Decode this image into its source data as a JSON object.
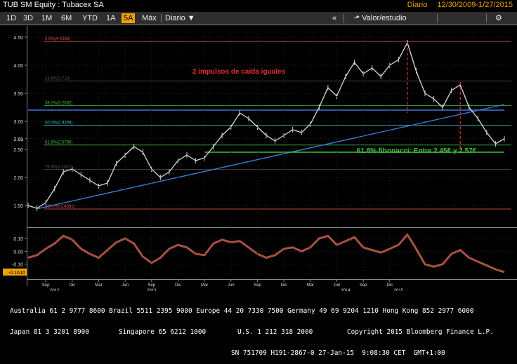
{
  "window": {
    "title": "TUB SM Equity : Tubacex SA",
    "frequency": "Diario",
    "date_range": "12/30/2009-1/27/2015"
  },
  "toolbar": {
    "buttons": [
      "1D",
      "3D",
      "1M",
      "6M",
      "YTD",
      "1A",
      "5A",
      "Máx"
    ],
    "selected": "5A",
    "frequency_dropdown": "Diario",
    "collapse": "«",
    "chart_type_label": "Valor/estudio",
    "settings_icon": "gear-icon"
  },
  "chart_data": {
    "type": "line",
    "price": {
      "y_ticks": [
        "4.50",
        "4.00",
        "3.50",
        "3.00",
        "2.69",
        "2.50",
        "2.00",
        "1.50"
      ],
      "fib_levels": [
        {
          "label": "0.0%(4.4236)",
          "value": 4.4236,
          "color": "#e05050"
        },
        {
          "label": "23.6%(3.719)",
          "value": 3.719,
          "color": "#555555"
        },
        {
          "label": "38.2%(3.2832)",
          "value": 3.2832,
          "color": "#40c040"
        },
        {
          "label": "50.0%(2.9309)",
          "value": 2.9309,
          "color": "#40c0c0"
        },
        {
          "label": "61.8%(2.5786)",
          "value": 2.5786,
          "color": "#40c040"
        },
        {
          "label": "76.4%(2.1427)",
          "value": 2.1427,
          "color": "#555555"
        },
        {
          "label": "100.0%(1.4381)",
          "value": 1.4381,
          "color": "#e05050"
        }
      ],
      "last_price": "2.69",
      "annotations": [
        "2 impulsos de caída iguales",
        "61.8% fibonacci: Entre 2.45€ y 2.57€"
      ],
      "series": [
        {
          "date": "2010-07",
          "value": 1.5
        },
        {
          "date": "2010-08",
          "value": 1.45
        },
        {
          "date": "2010-09",
          "value": 1.55
        },
        {
          "date": "2010-10",
          "value": 1.8
        },
        {
          "date": "2010-11",
          "value": 2.1
        },
        {
          "date": "2010-12",
          "value": 2.15
        },
        {
          "date": "2011-01",
          "value": 2.05
        },
        {
          "date": "2011-02",
          "value": 1.95
        },
        {
          "date": "2011-03",
          "value": 1.85
        },
        {
          "date": "2011-04",
          "value": 1.9
        },
        {
          "date": "2011-05",
          "value": 2.25
        },
        {
          "date": "2011-06",
          "value": 2.4
        },
        {
          "date": "2011-07",
          "value": 2.55
        },
        {
          "date": "2011-08",
          "value": 2.45
        },
        {
          "date": "2011-09",
          "value": 2.15
        },
        {
          "date": "2011-10",
          "value": 2.0
        },
        {
          "date": "2011-11",
          "value": 2.1
        },
        {
          "date": "2011-12",
          "value": 2.3
        },
        {
          "date": "2012-01",
          "value": 2.4
        },
        {
          "date": "2012-02",
          "value": 2.3
        },
        {
          "date": "2012-03",
          "value": 2.35
        },
        {
          "date": "2012-04",
          "value": 2.55
        },
        {
          "date": "2012-05",
          "value": 2.75
        },
        {
          "date": "2012-06",
          "value": 2.9
        },
        {
          "date": "2012-07",
          "value": 3.15
        },
        {
          "date": "2012-08",
          "value": 3.05
        },
        {
          "date": "2012-09",
          "value": 2.9
        },
        {
          "date": "2012-10",
          "value": 2.75
        },
        {
          "date": "2012-11",
          "value": 2.65
        },
        {
          "date": "2012-12",
          "value": 2.75
        },
        {
          "date": "2013-01",
          "value": 2.85
        },
        {
          "date": "2013-02",
          "value": 2.8
        },
        {
          "date": "2013-03",
          "value": 2.95
        },
        {
          "date": "2013-04",
          "value": 3.25
        },
        {
          "date": "2013-05",
          "value": 3.6
        },
        {
          "date": "2013-06",
          "value": 3.45
        },
        {
          "date": "2013-07",
          "value": 3.8
        },
        {
          "date": "2013-08",
          "value": 4.05
        },
        {
          "date": "2013-09",
          "value": 3.85
        },
        {
          "date": "2013-10",
          "value": 3.95
        },
        {
          "date": "2013-11",
          "value": 3.8
        },
        {
          "date": "2013-12",
          "value": 4.0
        },
        {
          "date": "2014-01",
          "value": 4.1
        },
        {
          "date": "2014-02",
          "value": 4.4
        },
        {
          "date": "2014-03",
          "value": 3.9
        },
        {
          "date": "2014-04",
          "value": 3.5
        },
        {
          "date": "2014-05",
          "value": 3.4
        },
        {
          "date": "2014-06",
          "value": 3.25
        },
        {
          "date": "2014-07",
          "value": 3.55
        },
        {
          "date": "2014-08",
          "value": 3.65
        },
        {
          "date": "2014-09",
          "value": 3.25
        },
        {
          "date": "2014-10",
          "value": 3.05
        },
        {
          "date": "2014-11",
          "value": 2.8
        },
        {
          "date": "2014-12",
          "value": 2.6
        },
        {
          "date": "2015-01",
          "value": 2.69
        }
      ]
    },
    "oscillator": {
      "y_ticks": [
        "0.10",
        "0.00",
        "-0.10"
      ],
      "last_value": "-0.1610",
      "series": [
        {
          "date": "2010-07",
          "value": -0.05
        },
        {
          "date": "2010-08",
          "value": -0.03
        },
        {
          "date": "2010-09",
          "value": 0.02
        },
        {
          "date": "2010-10",
          "value": 0.06
        },
        {
          "date": "2010-11",
          "value": 0.12
        },
        {
          "date": "2010-12",
          "value": 0.09
        },
        {
          "date": "2011-01",
          "value": 0.02
        },
        {
          "date": "2011-02",
          "value": -0.02
        },
        {
          "date": "2011-03",
          "value": -0.05
        },
        {
          "date": "2011-04",
          "value": 0.01
        },
        {
          "date": "2011-05",
          "value": 0.07
        },
        {
          "date": "2011-06",
          "value": 0.1
        },
        {
          "date": "2011-07",
          "value": 0.06
        },
        {
          "date": "2011-08",
          "value": -0.04
        },
        {
          "date": "2011-09",
          "value": -0.09
        },
        {
          "date": "2011-10",
          "value": -0.05
        },
        {
          "date": "2011-11",
          "value": 0.02
        },
        {
          "date": "2011-12",
          "value": 0.05
        },
        {
          "date": "2012-01",
          "value": 0.03
        },
        {
          "date": "2012-02",
          "value": -0.02
        },
        {
          "date": "2012-03",
          "value": -0.03
        },
        {
          "date": "2012-04",
          "value": 0.06
        },
        {
          "date": "2012-05",
          "value": 0.09
        },
        {
          "date": "2012-06",
          "value": 0.07
        },
        {
          "date": "2012-07",
          "value": 0.08
        },
        {
          "date": "2012-08",
          "value": 0.03
        },
        {
          "date": "2012-09",
          "value": -0.02
        },
        {
          "date": "2012-10",
          "value": -0.05
        },
        {
          "date": "2012-11",
          "value": -0.03
        },
        {
          "date": "2012-12",
          "value": 0.02
        },
        {
          "date": "2013-01",
          "value": 0.03
        },
        {
          "date": "2013-02",
          "value": 0.0
        },
        {
          "date": "2013-03",
          "value": 0.03
        },
        {
          "date": "2013-04",
          "value": 0.1
        },
        {
          "date": "2013-05",
          "value": 0.12
        },
        {
          "date": "2013-06",
          "value": 0.05
        },
        {
          "date": "2013-07",
          "value": 0.08
        },
        {
          "date": "2013-08",
          "value": 0.11
        },
        {
          "date": "2013-09",
          "value": 0.03
        },
        {
          "date": "2013-10",
          "value": 0.01
        },
        {
          "date": "2013-11",
          "value": -0.01
        },
        {
          "date": "2013-12",
          "value": 0.02
        },
        {
          "date": "2014-01",
          "value": 0.05
        },
        {
          "date": "2014-02",
          "value": 0.13
        },
        {
          "date": "2014-03",
          "value": 0.02
        },
        {
          "date": "2014-04",
          "value": -0.1
        },
        {
          "date": "2014-05",
          "value": -0.12
        },
        {
          "date": "2014-06",
          "value": -0.1
        },
        {
          "date": "2014-07",
          "value": -0.02
        },
        {
          "date": "2014-08",
          "value": 0.01
        },
        {
          "date": "2014-09",
          "value": -0.05
        },
        {
          "date": "2014-10",
          "value": -0.08
        },
        {
          "date": "2014-11",
          "value": -0.11
        },
        {
          "date": "2014-12",
          "value": -0.14
        },
        {
          "date": "2015-01",
          "value": -0.161
        }
      ]
    },
    "x_axis": {
      "month_ticks": [
        {
          "label": "Sep",
          "date": "2010-09"
        },
        {
          "label": "Dic",
          "date": "2010-12"
        },
        {
          "label": "Mar",
          "date": "2011-03"
        },
        {
          "label": "Jun",
          "date": "2011-06"
        },
        {
          "label": "Sep",
          "date": "2011-09"
        },
        {
          "label": "Dic",
          "date": "2011-12"
        },
        {
          "label": "Mar",
          "date": "2012-03"
        },
        {
          "label": "Jun",
          "date": "2012-06"
        },
        {
          "label": "Sep",
          "date": "2012-09"
        },
        {
          "label": "Dic",
          "date": "2012-12"
        },
        {
          "label": "Mar",
          "date": "2013-03"
        },
        {
          "label": "Jun",
          "date": "2013-06"
        },
        {
          "label": "Sep",
          "date": "2013-09"
        },
        {
          "label": "Dic",
          "date": "2013-12"
        }
      ],
      "year_ticks": [
        {
          "label": "2012",
          "date": "2010-10"
        },
        {
          "label": "2013",
          "date": "2011-09"
        },
        {
          "label": "2014",
          "date": "2013-07"
        },
        {
          "label": "2015",
          "date": "2014-01"
        }
      ]
    },
    "trendlines": [
      {
        "color": "#3a7bd5",
        "from": {
          "date": "2010-08",
          "value": 1.44
        },
        "to": {
          "date": "2015-01",
          "value": 3.3
        }
      },
      {
        "color": "#3a7bd5",
        "from": {
          "date": "2010-07",
          "value": 3.2
        },
        "to": {
          "date": "2015-01",
          "value": 3.2
        }
      },
      {
        "color": "#40c040",
        "from": {
          "date": "2012-03",
          "value": 2.45
        },
        "to": {
          "date": "2015-01",
          "value": 2.45
        }
      }
    ],
    "drop_markers": [
      {
        "date": "2014-02",
        "from": 4.4,
        "to": 3.15
      },
      {
        "date": "2014-08",
        "from": 3.7,
        "to": 2.45
      }
    ]
  },
  "footer": {
    "line1": "Australia 61 2 9777 8600 Brazil 5511 2395 9000 Europe 44 20 7330 7500 Germany 49 69 9204 1210 Hong Kong 852 2977 6000",
    "line2_left": "Japan 81 3 3201 8900",
    "line2_mid": "Singapore 65 6212 1000",
    "line2_mid2": "U.S. 1 212 318 2000",
    "line2_right": "Copyright 2015 Bloomberg Finance L.P.",
    "line3": "SN 751709 H191-2867-0 27-Jan-15  9:08:30 CET  GMT+1:00"
  }
}
